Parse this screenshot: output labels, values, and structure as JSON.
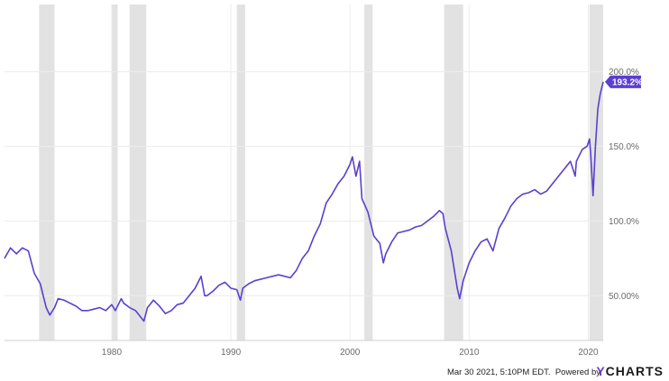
{
  "chart_data": {
    "type": "line",
    "x_ticks": [
      "1980",
      "1990",
      "2000",
      "2010",
      "2020"
    ],
    "y_ticks": [
      "50.00%",
      "100.0%",
      "150.0%",
      "200.0%"
    ],
    "xlim": [
      1971.0,
      2021.25
    ],
    "ylim": [
      20,
      245
    ],
    "grid": true,
    "last_value_label": "193.2%",
    "line_color": "#5b3fd0",
    "recession_color": "#e2e2e2",
    "recessions": [
      [
        1973.9,
        1975.2
      ],
      [
        1980.0,
        1980.5
      ],
      [
        1981.5,
        1982.9
      ],
      [
        1990.5,
        1991.2
      ],
      [
        2001.2,
        2001.9
      ],
      [
        2007.9,
        2009.5
      ],
      [
        2020.1,
        2021.25
      ]
    ],
    "series": [
      {
        "x": [
          1971.0,
          1971.5,
          1972.0,
          1972.5,
          1973.0,
          1973.5,
          1974.0,
          1974.5,
          1974.8,
          1975.2,
          1975.5,
          1976.0,
          1976.5,
          1977.0,
          1977.5,
          1978.0,
          1978.5,
          1979.0,
          1979.5,
          1980.0,
          1980.3,
          1980.8,
          1981.0,
          1981.5,
          1982.0,
          1982.5,
          1982.7,
          1983.0,
          1983.5,
          1984.0,
          1984.5,
          1985.0,
          1985.5,
          1986.0,
          1986.5,
          1987.0,
          1987.5,
          1987.8,
          1988.0,
          1988.5,
          1989.0,
          1989.5,
          1990.0,
          1990.5,
          1990.8,
          1991.0,
          1991.5,
          1992.0,
          1993.0,
          1994.0,
          1995.0,
          1995.5,
          1996.0,
          1996.5,
          1997.0,
          1997.5,
          1998.0,
          1998.5,
          1999.0,
          1999.5,
          2000.0,
          2000.2,
          2000.5,
          2000.8,
          2001.0,
          2001.5,
          2002.0,
          2002.5,
          2002.8,
          2003.0,
          2003.5,
          2004.0,
          2004.5,
          2005.0,
          2005.5,
          2006.0,
          2006.5,
          2007.0,
          2007.5,
          2007.8,
          2008.0,
          2008.5,
          2008.8,
          2009.0,
          2009.2,
          2009.5,
          2010.0,
          2010.5,
          2011.0,
          2011.5,
          2012.0,
          2012.5,
          2013.0,
          2013.5,
          2014.0,
          2014.5,
          2015.0,
          2015.5,
          2016.0,
          2016.5,
          2017.0,
          2017.5,
          2018.0,
          2018.5,
          2018.9,
          2019.0,
          2019.5,
          2019.9,
          2020.1,
          2020.2,
          2020.4,
          2020.6,
          2020.8,
          2021.0,
          2021.25
        ],
        "y": [
          75,
          82,
          78,
          82,
          80,
          65,
          58,
          42,
          37,
          42,
          48,
          47,
          45,
          43,
          40,
          40,
          41,
          42,
          40,
          44,
          40,
          48,
          45,
          42,
          40,
          35,
          33,
          42,
          47,
          43,
          38,
          40,
          44,
          45,
          50,
          55,
          63,
          50,
          50,
          53,
          57,
          59,
          55,
          54,
          47,
          55,
          58,
          60,
          62,
          64,
          62,
          67,
          75,
          80,
          90,
          98,
          112,
          118,
          125,
          130,
          138,
          143,
          130,
          140,
          115,
          106,
          90,
          85,
          72,
          78,
          86,
          92,
          93,
          94,
          96,
          97,
          100,
          103,
          107,
          105,
          95,
          80,
          65,
          55,
          48,
          60,
          72,
          80,
          86,
          88,
          80,
          95,
          102,
          110,
          115,
          118,
          119,
          121,
          118,
          120,
          125,
          130,
          135,
          140,
          130,
          140,
          148,
          150,
          155,
          145,
          117,
          150,
          175,
          185,
          193.2
        ]
      }
    ]
  },
  "footer": {
    "timestamp": "Mar 30 2021, 5:10PM EDT.",
    "powered_by": "Powered by",
    "brand_y": "Y",
    "brand_rest": "CHARTS"
  }
}
